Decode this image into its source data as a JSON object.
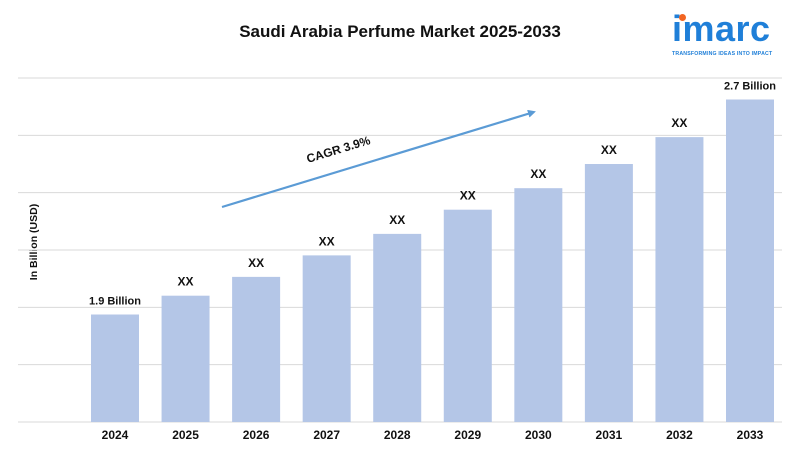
{
  "title": "Saudi Arabia Perfume Market 2025-2033",
  "logo": {
    "word": "imarc",
    "tagline": "TRANSFORMING IDEAS INTO IMPACT"
  },
  "chart_data": {
    "type": "bar",
    "title": "Saudi Arabia Perfume Market 2025-2033",
    "xlabel": "",
    "ylabel": "In Billion (USD)",
    "categories": [
      "2024",
      "2025",
      "2026",
      "2027",
      "2028",
      "2029",
      "2030",
      "2031",
      "2032",
      "2033"
    ],
    "values": [
      1.9,
      1.97,
      2.04,
      2.12,
      2.2,
      2.29,
      2.37,
      2.46,
      2.56,
      2.7
    ],
    "data_labels": [
      "1.9 Billion",
      "XX",
      "XX",
      "XX",
      "XX",
      "XX",
      "XX",
      "XX",
      "XX",
      "2.7 Billion"
    ],
    "ylim": [
      1.5,
      2.78
    ],
    "grid": true,
    "annotation": "CAGR 3.9%",
    "colors": {
      "bar": "#b4c6e7",
      "arrow": "#5b9bd5",
      "grid": "#d9d9d9"
    }
  }
}
